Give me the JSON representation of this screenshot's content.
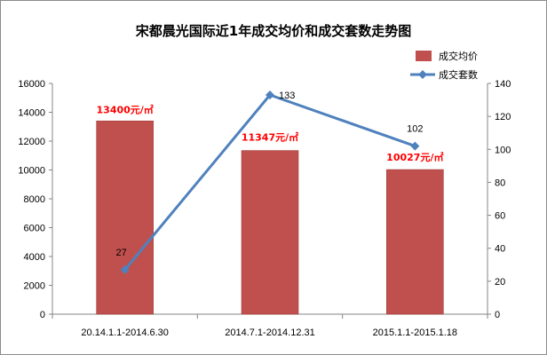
{
  "chart_data": {
    "type": "bar",
    "title": "宋都晨光国际近1年成交均价和成交套数走势图",
    "categories": [
      "20.14.1.1-2014.6.30",
      "2014.7.1-2014.12.31",
      "2015.1.1-2015.1.18"
    ],
    "series": [
      {
        "name": "成交均价",
        "type": "bar",
        "axis": "left",
        "color": "#c0504d",
        "values": [
          13400,
          11347,
          10027
        ],
        "labels": [
          "13400元/㎡",
          "11347元/㎡",
          "10027元/㎡"
        ]
      },
      {
        "name": "成交套数",
        "type": "line",
        "axis": "right",
        "color": "#4f81bd",
        "values": [
          27,
          133,
          102
        ],
        "labels": [
          "27",
          "133",
          "102"
        ]
      }
    ],
    "left_axis": {
      "min": 0,
      "max": 16000,
      "step": 2000,
      "ticks": [
        "0",
        "2000",
        "4000",
        "6000",
        "8000",
        "10000",
        "12000",
        "14000",
        "16000"
      ]
    },
    "right_axis": {
      "min": 0,
      "max": 140,
      "step": 20,
      "ticks": [
        "0",
        "20",
        "40",
        "60",
        "80",
        "100",
        "120",
        "140"
      ]
    },
    "grid": false,
    "legend_position": "top-right"
  }
}
